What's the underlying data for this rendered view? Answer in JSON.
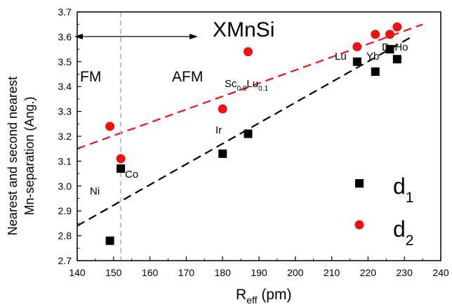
{
  "chart_data": {
    "type": "scatter",
    "title": "XMnSi",
    "xlabel_main": "R",
    "xlabel_sub": "eff",
    "xlabel_unit": " (pm)",
    "ylabel_line1": "Nearest and second nearest",
    "ylabel_line2": "Mn-separation (Ang.)",
    "xlim": [
      140,
      240
    ],
    "ylim": [
      2.7,
      3.7
    ],
    "xticks": [
      "140",
      "150",
      "160",
      "170",
      "180",
      "190",
      "200",
      "210",
      "220",
      "230",
      "240"
    ],
    "yticks": [
      "2.7",
      "2.8",
      "2.9",
      "3.0",
      "3.1",
      "3.2",
      "3.3",
      "3.4",
      "3.5",
      "3.6",
      "3.7"
    ],
    "series": [
      {
        "name": "d1",
        "marker": "square",
        "color": "#000000",
        "points": [
          {
            "x": 149,
            "y": 2.78
          },
          {
            "x": 152,
            "y": 3.07
          },
          {
            "x": 180,
            "y": 3.13
          },
          {
            "x": 187,
            "y": 3.21
          },
          {
            "x": 217,
            "y": 3.5
          },
          {
            "x": 222,
            "y": 3.46
          },
          {
            "x": 226,
            "y": 3.55
          },
          {
            "x": 228,
            "y": 3.51
          }
        ],
        "fit_line": {
          "x": [
            140,
            232
          ],
          "y": [
            2.84,
            3.6
          ]
        }
      },
      {
        "name": "d2",
        "marker": "circle",
        "color": "#ee1111",
        "points": [
          {
            "x": 149,
            "y": 3.24
          },
          {
            "x": 152,
            "y": 3.11
          },
          {
            "x": 180,
            "y": 3.31
          },
          {
            "x": 187,
            "y": 3.54
          },
          {
            "x": 217,
            "y": 3.56
          },
          {
            "x": 222,
            "y": 3.61
          },
          {
            "x": 226,
            "y": 3.61
          },
          {
            "x": 228,
            "y": 3.64
          }
        ],
        "fit_line": {
          "x": [
            140,
            235
          ],
          "y": [
            3.15,
            3.65
          ]
        }
      }
    ],
    "vline_x": 152,
    "legend": [
      {
        "base": "d",
        "sub": "1",
        "marker": "square",
        "color": "#000000"
      },
      {
        "base": "d",
        "sub": "2",
        "marker": "circle",
        "color": "#ee1111"
      }
    ],
    "annotations": {
      "fm": "FM",
      "afm": "AFM",
      "ni": "Ni",
      "co": "Co",
      "ir": "Ir",
      "lu": "Lu",
      "yb": "Yb",
      "dyho": "DyHo",
      "sclu_a": "Sc",
      "sclu_a_sub": "0.9",
      "sclu_b": "Lu",
      "sclu_b_sub": "0.1"
    }
  }
}
